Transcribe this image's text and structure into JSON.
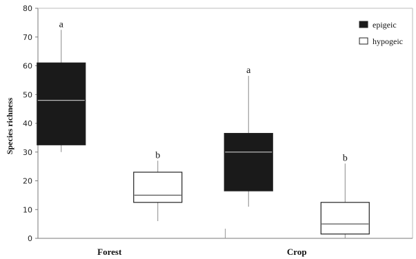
{
  "chart_data": {
    "type": "box",
    "ylabel": "Species richness",
    "xlabel": "",
    "ylim": [
      0,
      80
    ],
    "yticks": [
      0,
      10,
      20,
      30,
      40,
      50,
      60,
      70,
      80
    ],
    "categories": [
      "Forest",
      "Crop"
    ],
    "legend": {
      "placement": "top-right"
    },
    "grid": false,
    "series": [
      {
        "name": "epigeic",
        "color": "#1a1a1a",
        "median_color": "#bbbbbb",
        "boxes": [
          {
            "category": "Forest",
            "min": 30,
            "q1": 32.5,
            "median": 48,
            "q3": 61,
            "max": 72.5,
            "label": "a"
          },
          {
            "category": "Crop",
            "min": 11,
            "q1": 16.5,
            "median": 30,
            "q3": 36.5,
            "max": 56.5,
            "label": "a"
          }
        ]
      },
      {
        "name": "hypogeic",
        "color": "#ffffff",
        "median_color": "#555555",
        "boxes": [
          {
            "category": "Forest",
            "min": 6,
            "q1": 12.5,
            "median": 15,
            "q3": 23,
            "max": 27,
            "label": "b"
          },
          {
            "category": "Crop",
            "min": 0,
            "q1": 1.5,
            "median": 5,
            "q3": 12.5,
            "max": 26,
            "label": "b"
          }
        ]
      }
    ]
  }
}
